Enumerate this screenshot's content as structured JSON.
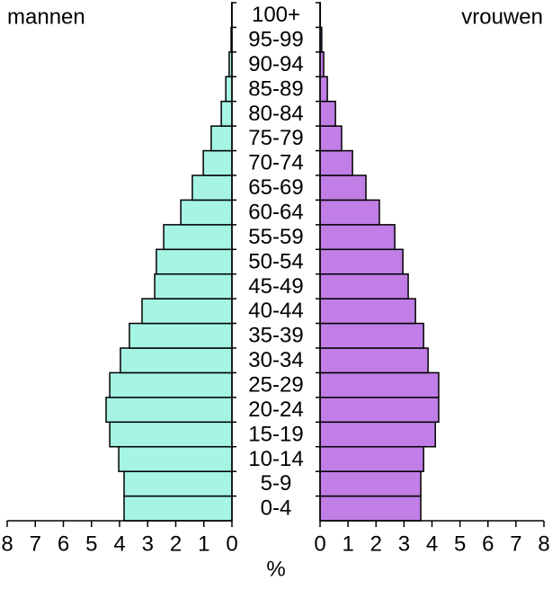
{
  "chart_data": {
    "type": "population_pyramid",
    "categories": [
      "0-4",
      "5-9",
      "10-14",
      "15-19",
      "20-24",
      "25-29",
      "30-34",
      "35-39",
      "40-44",
      "45-49",
      "50-54",
      "55-59",
      "60-64",
      "65-69",
      "70-74",
      "75-79",
      "80-84",
      "85-89",
      "90-94",
      "95-99",
      "100+"
    ],
    "series": [
      {
        "name": "mannen",
        "color": "#a6f4e4",
        "side": "left",
        "values": [
          3.84,
          3.84,
          4.03,
          4.35,
          4.48,
          4.35,
          3.97,
          3.65,
          3.2,
          2.75,
          2.69,
          2.43,
          1.82,
          1.41,
          1.02,
          0.74,
          0.38,
          0.22,
          0.1,
          0.03,
          0.01
        ]
      },
      {
        "name": "vrouwen",
        "color": "#c07ee6",
        "side": "right",
        "values": [
          3.6,
          3.6,
          3.7,
          4.12,
          4.24,
          4.24,
          3.86,
          3.7,
          3.41,
          3.15,
          2.96,
          2.67,
          2.12,
          1.64,
          1.16,
          0.77,
          0.55,
          0.26,
          0.13,
          0.06,
          0.01
        ]
      }
    ],
    "xlim": [
      0,
      8
    ],
    "xticks": [
      0,
      1,
      2,
      3,
      4,
      5,
      6,
      7,
      8
    ],
    "xlabel": "%"
  }
}
